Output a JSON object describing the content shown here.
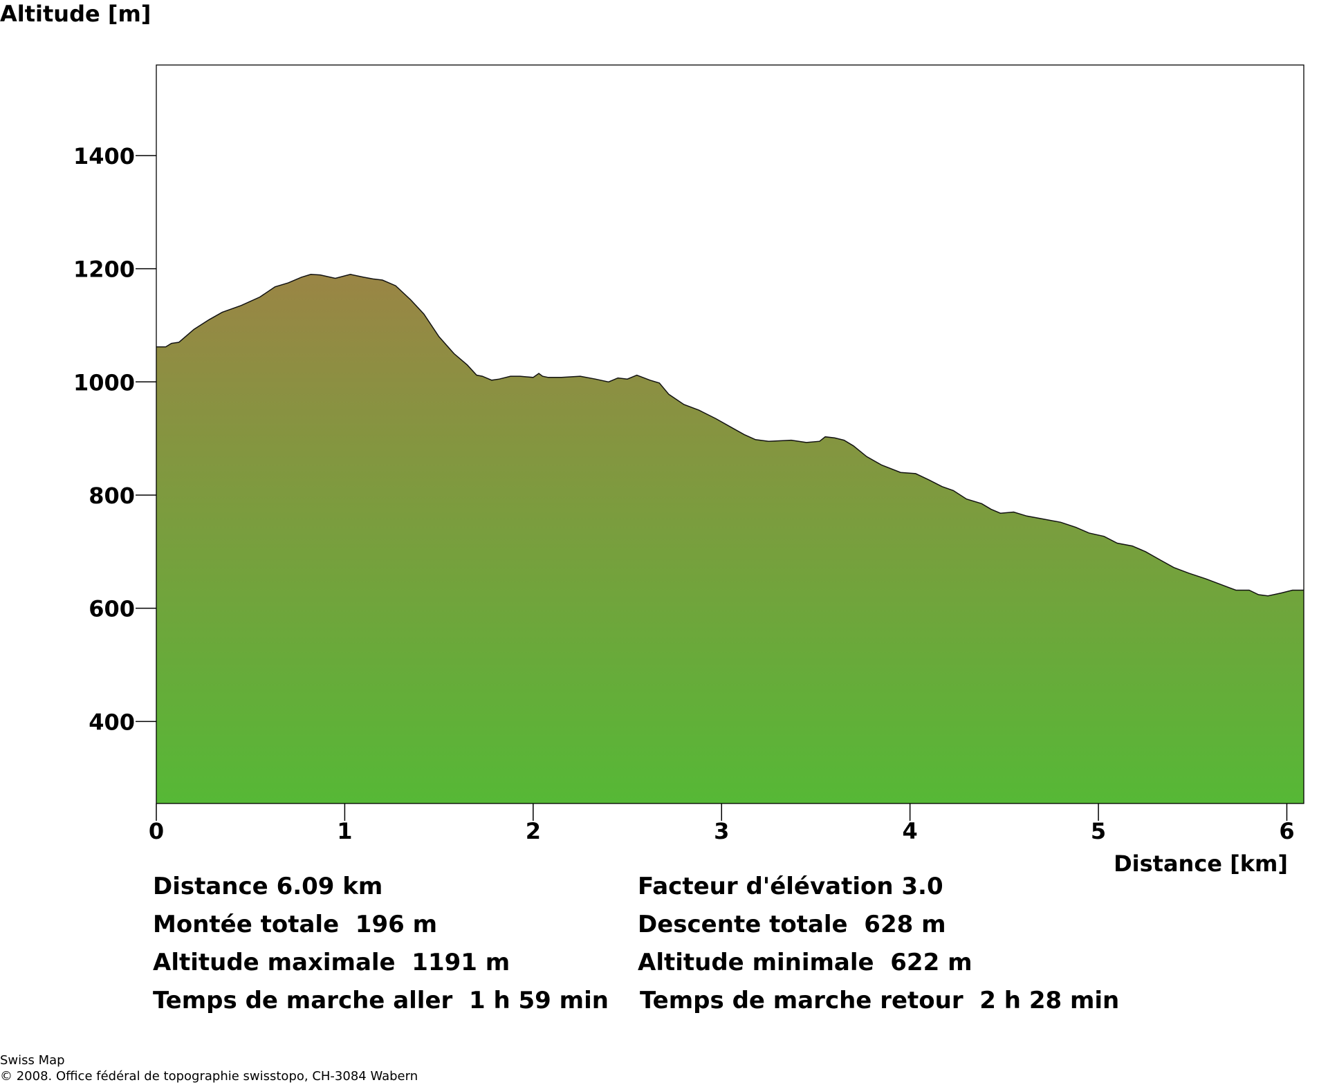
{
  "chart_data": {
    "type": "area",
    "ylabel": "Altitude [m]",
    "xlabel": "Distance [km]",
    "xlim": [
      0,
      6.09
    ],
    "ylim": [
      255,
      1560
    ],
    "x_ticks": [
      0,
      1,
      2,
      3,
      4,
      5,
      6
    ],
    "y_ticks": [
      400,
      600,
      800,
      1000,
      1200,
      1400
    ],
    "grid": false,
    "fill_gradient": {
      "top": "#9a8545",
      "bottom": "#56b836"
    },
    "x": [
      0,
      0.05,
      0.08,
      0.12,
      0.2,
      0.28,
      0.35,
      0.45,
      0.55,
      0.63,
      0.7,
      0.77,
      0.82,
      0.87,
      0.95,
      1.03,
      1.1,
      1.15,
      1.2,
      1.27,
      1.35,
      1.42,
      1.5,
      1.58,
      1.65,
      1.7,
      1.73,
      1.78,
      1.82,
      1.88,
      1.93,
      2.0,
      2.03,
      2.05,
      2.08,
      2.15,
      2.25,
      2.33,
      2.4,
      2.45,
      2.5,
      2.55,
      2.62,
      2.67,
      2.72,
      2.8,
      2.88,
      2.97,
      3.05,
      3.12,
      3.18,
      3.25,
      3.37,
      3.45,
      3.52,
      3.55,
      3.6,
      3.65,
      3.7,
      3.77,
      3.85,
      3.95,
      4.03,
      4.1,
      4.17,
      4.23,
      4.3,
      4.38,
      4.43,
      4.48,
      4.55,
      4.62,
      4.7,
      4.8,
      4.88,
      4.95,
      5.03,
      5.1,
      5.18,
      5.25,
      5.33,
      5.4,
      5.48,
      5.57,
      5.65,
      5.73,
      5.8,
      5.85,
      5.9,
      5.97,
      6.03,
      6.09
    ],
    "y": [
      1062,
      1062,
      1068,
      1070,
      1093,
      1110,
      1123,
      1135,
      1150,
      1168,
      1175,
      1185,
      1190,
      1189,
      1183,
      1190,
      1185,
      1182,
      1180,
      1170,
      1145,
      1120,
      1080,
      1050,
      1030,
      1012,
      1010,
      1003,
      1005,
      1010,
      1010,
      1008,
      1015,
      1010,
      1008,
      1008,
      1010,
      1005,
      1000,
      1007,
      1005,
      1012,
      1003,
      998,
      978,
      960,
      950,
      935,
      920,
      907,
      898,
      895,
      897,
      893,
      895,
      903,
      901,
      897,
      887,
      868,
      853,
      840,
      838,
      827,
      815,
      808,
      793,
      785,
      775,
      768,
      770,
      763,
      758,
      752,
      743,
      733,
      727,
      715,
      710,
      700,
      685,
      672,
      662,
      652,
      642,
      632,
      632,
      624,
      622,
      627,
      632,
      632
    ]
  },
  "stats": {
    "distance": "Distance 6.09 km",
    "elevation_factor": "Facteur d'élévation 3.0",
    "total_ascent": "Montée totale  196 m",
    "total_descent": "Descente totale  628 m",
    "max_altitude": "Altitude maximale  1191 m",
    "min_altitude": "Altitude minimale  622 m",
    "walk_time_out": "Temps de marche aller  1 h 59 min",
    "walk_time_return": "Temps de marche retour  2 h 28 min"
  },
  "credits": {
    "line1": "Swiss Map",
    "line2": "© 2008. Office fédéral de topographie swisstopo, CH-3084 Wabern"
  }
}
